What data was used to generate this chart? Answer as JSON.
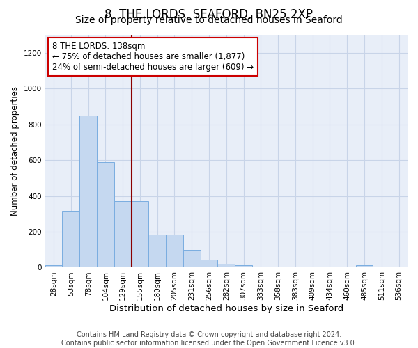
{
  "title": "8, THE LORDS, SEAFORD, BN25 2XP",
  "subtitle": "Size of property relative to detached houses in Seaford",
  "xlabel": "Distribution of detached houses by size in Seaford",
  "ylabel": "Number of detached properties",
  "categories": [
    "28sqm",
    "53sqm",
    "78sqm",
    "104sqm",
    "129sqm",
    "155sqm",
    "180sqm",
    "205sqm",
    "231sqm",
    "256sqm",
    "282sqm",
    "307sqm",
    "333sqm",
    "358sqm",
    "383sqm",
    "409sqm",
    "434sqm",
    "460sqm",
    "485sqm",
    "511sqm",
    "536sqm"
  ],
  "values": [
    15,
    315,
    850,
    590,
    370,
    370,
    185,
    185,
    100,
    45,
    20,
    15,
    0,
    0,
    0,
    0,
    0,
    0,
    15,
    0,
    0
  ],
  "bar_color": "#c5d8f0",
  "bar_edge_color": "#7aade0",
  "vline_x_index": 4.5,
  "vline_color": "#8b0000",
  "annotation_text": "8 THE LORDS: 138sqm\n← 75% of detached houses are smaller (1,877)\n24% of semi-detached houses are larger (609) →",
  "annotation_box_color": "#ffffff",
  "annotation_box_edge_color": "#cc0000",
  "ylim": [
    0,
    1300
  ],
  "yticks": [
    0,
    200,
    400,
    600,
    800,
    1000,
    1200
  ],
  "grid_color": "#c8d4e8",
  "background_color": "#e8eef8",
  "footer_text": "Contains HM Land Registry data © Crown copyright and database right 2024.\nContains public sector information licensed under the Open Government Licence v3.0.",
  "title_fontsize": 12,
  "subtitle_fontsize": 10,
  "xlabel_fontsize": 9.5,
  "ylabel_fontsize": 8.5,
  "tick_fontsize": 7.5,
  "annotation_fontsize": 8.5,
  "footer_fontsize": 7
}
